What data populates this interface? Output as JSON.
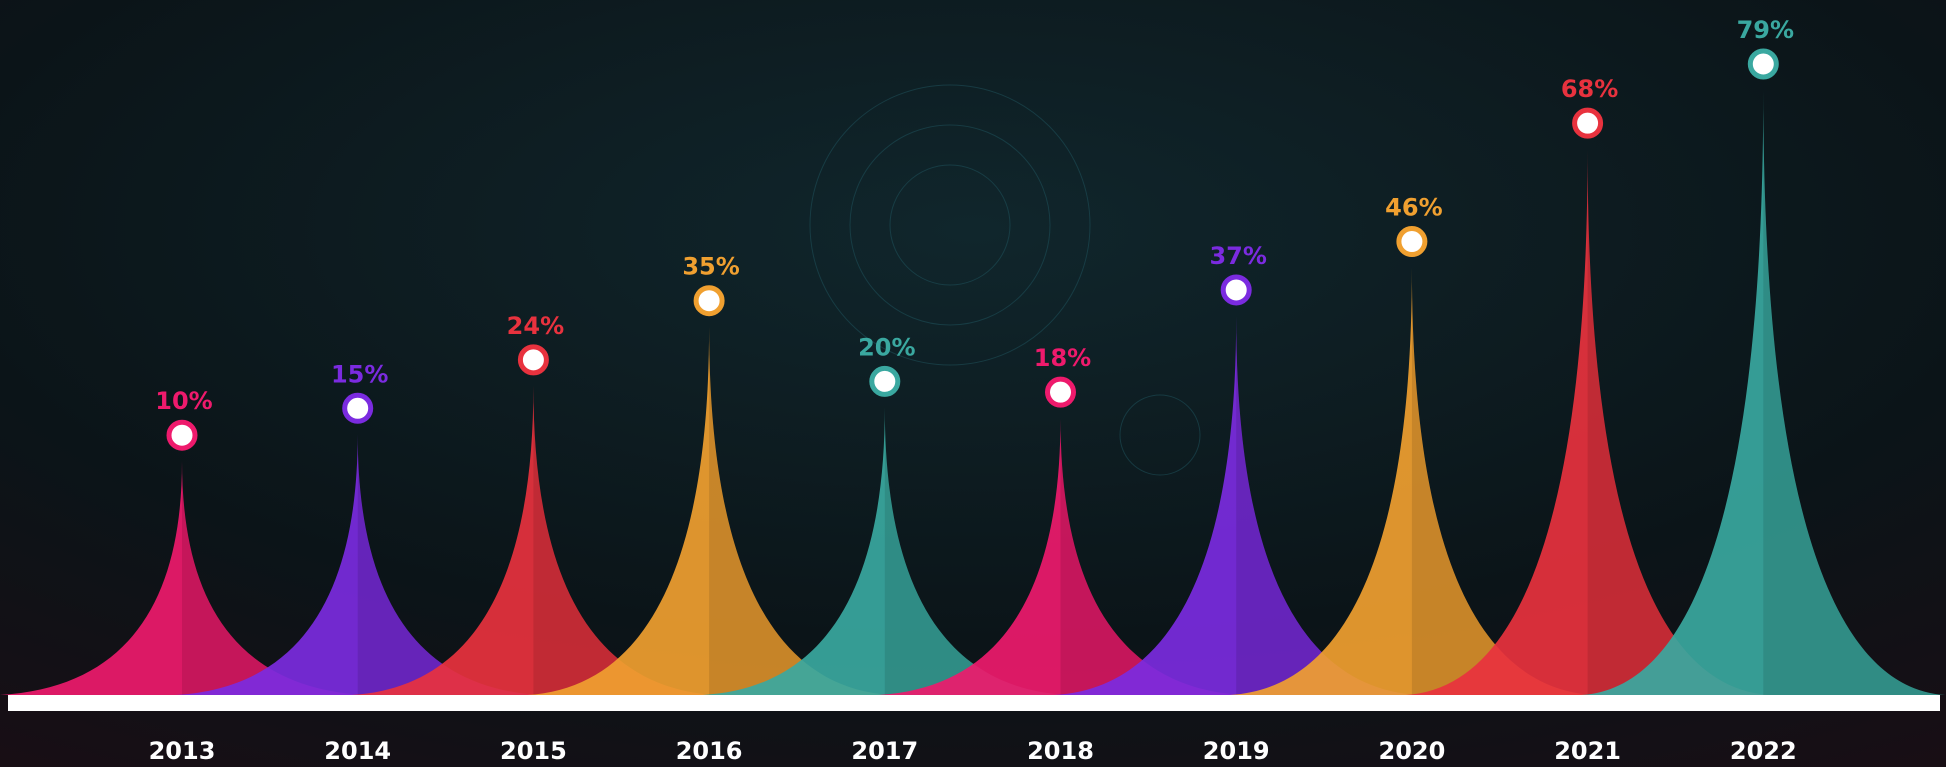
{
  "chart_data": {
    "type": "spike",
    "categories": [
      "2013",
      "2014",
      "2015",
      "2016",
      "2017",
      "2018",
      "2019",
      "2020",
      "2021",
      "2022"
    ],
    "values": [
      10,
      15,
      24,
      35,
      20,
      18,
      37,
      46,
      68,
      79
    ],
    "value_labels": [
      "10%",
      "15%",
      "24%",
      "35%",
      "20%",
      "18%",
      "37%",
      "46%",
      "68%",
      "79%"
    ],
    "colors": [
      "#ee1a6c",
      "#7b2be0",
      "#e8323e",
      "#f0a030",
      "#3aa8a0",
      "#ee1a6c",
      "#7b2be0",
      "#f0a030",
      "#e8323e",
      "#3aa8a0"
    ]
  }
}
